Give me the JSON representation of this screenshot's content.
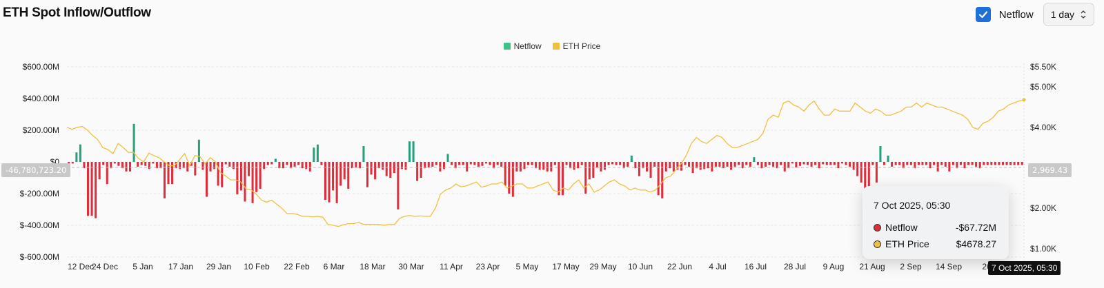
{
  "header": {
    "title": "ETH Spot Inflow/Outflow"
  },
  "controls": {
    "netflow_label": "Netflow",
    "netflow_checked": true,
    "interval": "1 day"
  },
  "colors": {
    "netflow_pos": "#26a17b",
    "netflow_neg": "#e02d3c",
    "price": "#f0c040",
    "legend_netflow": "#3cc28a",
    "legend_price": "#f0bf3e"
  },
  "chart_data": {
    "type": "bar",
    "title": "",
    "series": [
      {
        "name": "Netflow",
        "type": "bar",
        "unit": "USD"
      },
      {
        "name": "ETH Price",
        "type": "line",
        "axis": "right",
        "unit": "USD"
      }
    ],
    "y_left": {
      "ticks": [
        "$600.00M",
        "$400.00M",
        "$200.00M",
        "$0",
        "$-200.00M",
        "$-400.00M",
        "$-600.00M"
      ],
      "range": [
        -600000000,
        600000000
      ]
    },
    "y_right": {
      "ticks": [
        "$5.50K",
        "$5.00K",
        "$4.00K",
        "$3.00K",
        "$2.00K",
        "$1.00K"
      ]
    },
    "x_ticks": [
      "12 Dec",
      "24 Dec",
      "5 Jan",
      "17 Jan",
      "29 Jan",
      "10 Feb",
      "22 Feb",
      "6 Mar",
      "18 Mar",
      "30 Mar",
      "11 Apr",
      "23 Apr",
      "5 May",
      "17 May",
      "29 May",
      "10 Jun",
      "22 Jun",
      "4 Jul",
      "16 Jul",
      "28 Jul",
      "9 Aug",
      "21 Aug",
      "2 Sep",
      "14 Sep",
      "26"
    ],
    "grid": true,
    "legend_position": "top-center",
    "crosshair": {
      "left_value": "-46,780,723.20",
      "right_value": "2,969.43",
      "x_label": "7 Oct 2025, 05:30"
    },
    "tooltip": {
      "date": "7 Oct 2025, 05:30",
      "rows": [
        {
          "name": "Netflow",
          "value": "-$67.72M"
        },
        {
          "name": "ETH Price",
          "value": "$4678.27"
        }
      ]
    },
    "netflow_usd_millions": [
      -40,
      -10,
      60,
      110,
      -40,
      -340,
      -340,
      -355,
      -110,
      -20,
      -140,
      -40,
      -10,
      -25,
      -40,
      -60,
      -60,
      240,
      -30,
      -20,
      -25,
      -45,
      -10,
      -40,
      -40,
      -230,
      -140,
      -140,
      -40,
      -45,
      -40,
      -60,
      -25,
      -85,
      140,
      -50,
      -220,
      -60,
      -45,
      -150,
      -160,
      -15,
      -30,
      -45,
      -205,
      -180,
      -250,
      -90,
      -260,
      -190,
      -170,
      -45,
      -20,
      -15,
      20,
      -40,
      -40,
      -20,
      -40,
      -30,
      -20,
      -40,
      -45,
      -60,
      90,
      110,
      -20,
      -240,
      -255,
      -180,
      -260,
      -150,
      -110,
      -170,
      -40,
      -35,
      -40,
      100,
      -160,
      -80,
      -110,
      -40,
      -50,
      -90,
      -100,
      -70,
      -300,
      -45,
      -50,
      130,
      130,
      -120,
      -100,
      -40,
      -35,
      -30,
      -20,
      -60,
      -45,
      50,
      -20,
      -40,
      -20,
      -20,
      -60,
      -15,
      -20,
      -30,
      -25,
      -10,
      -20,
      -40,
      -20,
      -30,
      -150,
      -200,
      -220,
      -60,
      -60,
      -45,
      -20,
      -20,
      -40,
      -50,
      -50,
      -60,
      -60,
      -20,
      -210,
      -210,
      -20,
      -40,
      -50,
      -40,
      -20,
      -200,
      -110,
      -100,
      -35,
      -60,
      -50,
      -20,
      -15,
      -20,
      -20,
      -40,
      -30,
      40,
      -40,
      -90,
      -40,
      -60,
      -100,
      -30,
      -210,
      -230,
      -60,
      -40,
      -60,
      -50,
      -55,
      -20,
      -30,
      -70,
      -40,
      -50,
      -45,
      -40,
      -60,
      -30,
      -30,
      -40,
      -30,
      -50,
      -30,
      -20,
      -40,
      -20,
      -30,
      30,
      -20,
      -40,
      -30,
      -20,
      -30,
      -40,
      -20,
      -60,
      -40,
      -10,
      -35,
      -25,
      -15,
      -20,
      -30,
      -20,
      -40,
      -15,
      -20,
      -20,
      -20,
      -40,
      -10,
      -20,
      -30,
      -50,
      -90,
      -130,
      -280,
      -270,
      -20,
      -130,
      100,
      -20,
      40,
      -30,
      -20,
      -20,
      -40,
      -20,
      -20,
      -40,
      -20,
      -20,
      -20,
      -40,
      -20,
      -60,
      -20,
      -30,
      -60,
      -20,
      -40,
      -20,
      -40,
      -20,
      -20,
      -30,
      -40,
      -20,
      -20,
      -20,
      -20,
      -20,
      -20,
      -20,
      -20,
      -20,
      -20,
      -20
    ],
    "eth_price_usd": [
      4000,
      3950,
      4000,
      4020,
      3930,
      3800,
      3700,
      3500,
      3450,
      3350,
      3600,
      3500,
      3380,
      3380,
      3230,
      3150,
      3360,
      3300,
      3250,
      3150,
      3050,
      3050,
      3200,
      3350,
      3050,
      3300,
      3280,
      3100,
      3250,
      3150,
      2880,
      2800,
      2700,
      2700,
      2650,
      2480,
      2450,
      2350,
      2200,
      2150,
      2200,
      2100,
      2000,
      1870,
      1870,
      1850,
      1800,
      1800,
      1790,
      1800,
      1780,
      1600,
      1580,
      1550,
      1590,
      1620,
      1620,
      1650,
      1600,
      1600,
      1600,
      1600,
      1580,
      1600,
      1600,
      1750,
      1800,
      1820,
      1800,
      1810,
      1800,
      1800,
      2000,
      2350,
      2450,
      2500,
      2600,
      2530,
      2550,
      2600,
      2650,
      2520,
      2550,
      2600,
      2600,
      2650,
      2500,
      2550,
      2600,
      2600,
      2500,
      2500,
      2550,
      2600,
      2650,
      2450,
      2400,
      2500,
      2450,
      2600,
      2700,
      2500,
      2600,
      2400,
      2450,
      2550,
      2650,
      2700,
      2600,
      2550,
      2450,
      2500,
      2450,
      2450,
      2400,
      2450,
      2600,
      2750,
      2800,
      2950,
      3100,
      3300,
      3600,
      3750,
      3650,
      3600,
      3700,
      3800,
      3750,
      3600,
      3500,
      3500,
      3550,
      3600,
      3650,
      3700,
      3850,
      4200,
      4300,
      4250,
      4600,
      4650,
      4550,
      4500,
      4400,
      4550,
      4650,
      4450,
      4300,
      4300,
      4450,
      4400,
      4400,
      4400,
      4600,
      4500,
      4400,
      4350,
      4450,
      4400,
      4300,
      4300,
      4350,
      4400,
      4500,
      4500,
      4600,
      4500,
      4600,
      4550,
      4500,
      4500,
      4450,
      4400,
      4350,
      4300,
      4200,
      4000,
      3950,
      4100,
      4150,
      4250,
      4400,
      4450,
      4550,
      4600,
      4650,
      4678
    ]
  }
}
